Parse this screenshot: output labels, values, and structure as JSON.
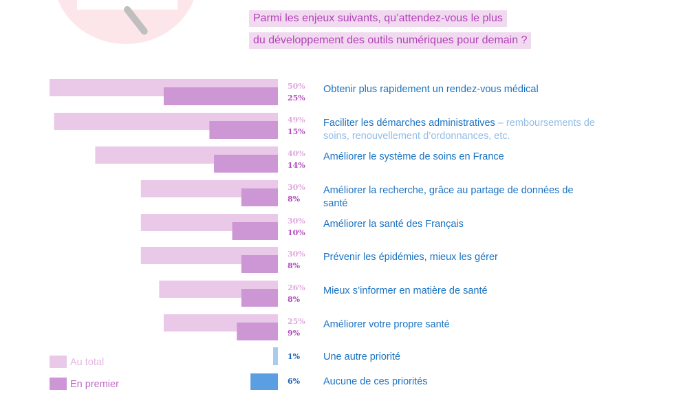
{
  "title_lines": [
    "Parmi les enjeux suivants, qu’attendez-vous le plus",
    "du développement des outils numériques pour demain ?"
  ],
  "colors": {
    "total": "#e9c8e8",
    "first": "#cd97d6",
    "other_total": "#a6cdf0",
    "other_first": "#5a9fe2",
    "label": "#1a72c2",
    "title": "#b342b8"
  },
  "legend": {
    "total_label": "Au total",
    "first_label": "En premier"
  },
  "chart_data": {
    "type": "bar",
    "orientation": "horizontal",
    "unit": "%",
    "xlim": [
      0,
      50
    ],
    "grid": false,
    "legend_position": "bottom-left",
    "series": [
      {
        "name": "Au total",
        "values": [
          50,
          49,
          40,
          30,
          30,
          30,
          26,
          25,
          1,
          null
        ]
      },
      {
        "name": "En premier",
        "values": [
          25,
          15,
          14,
          8,
          10,
          8,
          8,
          9,
          null,
          6
        ]
      }
    ],
    "value_labels": {
      "total": [
        "50%",
        "49%",
        "40%",
        "30%",
        "30%",
        "30%",
        "26%",
        "25%",
        "1%",
        ""
      ],
      "first": [
        "25%",
        "15%",
        "14%",
        "8%",
        "10%",
        "8%",
        "8%",
        "9%",
        "",
        "6%"
      ]
    },
    "categories": [
      {
        "label": "Obtenir plus rapidement un rendez-vous médical",
        "detail": ""
      },
      {
        "label": "Faciliter les démarches administratives",
        "detail": " – remboursements de soins, renouvellement d’ordonnances, etc."
      },
      {
        "label": "Améliorer le système de soins en France",
        "detail": ""
      },
      {
        "label": "Améliorer la recherche, grâce au partage de données de santé",
        "detail": ""
      },
      {
        "label": "Améliorer la santé des Français",
        "detail": ""
      },
      {
        "label": "Prévenir les épidémies, mieux les gérer",
        "detail": ""
      },
      {
        "label": "Mieux s’informer en matière de santé",
        "detail": ""
      },
      {
        "label": "Améliorer votre propre santé",
        "detail": ""
      },
      {
        "label": "Une autre priorité",
        "detail": ""
      },
      {
        "label": "Aucune de ces priorités",
        "detail": ""
      }
    ]
  }
}
